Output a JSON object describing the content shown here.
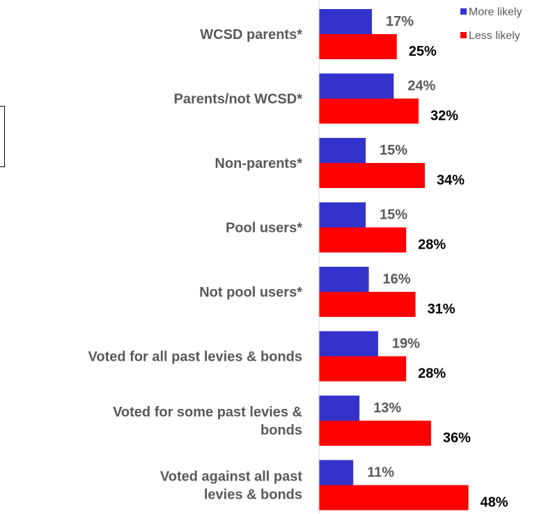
{
  "chart_data": {
    "type": "bar",
    "orientation": "horizontal",
    "categories": [
      "WCSD parents*",
      "Parents/not WCSD*",
      "Non-parents*",
      "Pool users*",
      "Not pool users*",
      "Voted for all past levies & bonds",
      "Voted for some past levies & bonds",
      "Voted against all past levies & bonds"
    ],
    "series": [
      {
        "name": "More likely",
        "color": "#3333CC",
        "values": [
          17,
          24,
          15,
          15,
          16,
          19,
          13,
          11
        ],
        "labels": [
          "17%",
          "24%",
          "15%",
          "15%",
          "16%",
          "19%",
          "13%",
          "11%"
        ]
      },
      {
        "name": "Less likely",
        "color": "#FF0000",
        "values": [
          25,
          32,
          34,
          28,
          31,
          28,
          36,
          48
        ],
        "labels": [
          "25%",
          "32%",
          "34%",
          "28%",
          "31%",
          "28%",
          "36%",
          "48%"
        ]
      }
    ],
    "xlim": [
      0,
      100
    ],
    "title": "",
    "xlabel": "",
    "ylabel": "",
    "grid": false,
    "legend_position": "top-right"
  }
}
